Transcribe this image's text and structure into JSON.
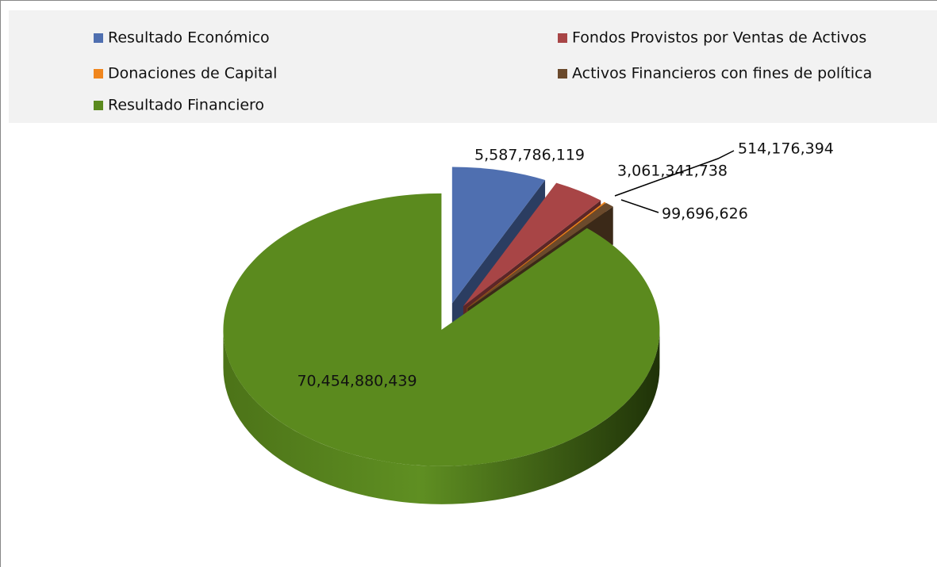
{
  "chart_data": {
    "type": "pie3d",
    "categories": [
      "Resultado Económico",
      "Fondos Provistos por Ventas de Activos",
      "Donaciones de Capital",
      "Activos Financieros con fines de política",
      "Resultado Financiero"
    ],
    "values": [
      5587786119,
      3061341738,
      99696626,
      514176394,
      70454880439
    ],
    "value_labels": [
      "5,587,786,119",
      "3,061,341,738",
      "99,696,626",
      "514,176,394",
      "70,454,880,439"
    ],
    "colors": [
      "#4f6fb0",
      "#a84546",
      "#f0861e",
      "#6b4a2c",
      "#5b8a1e"
    ],
    "legend": "top"
  }
}
